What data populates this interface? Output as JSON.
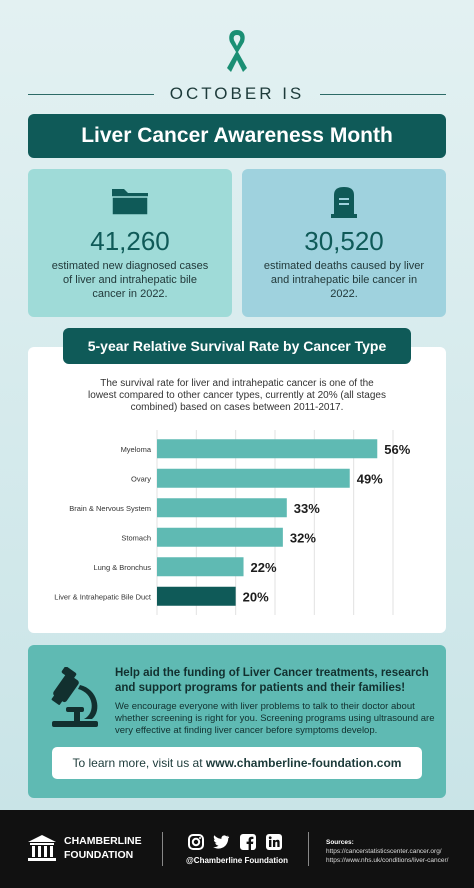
{
  "header": {
    "eyebrow": "OCTOBER IS",
    "title": "Liver Cancer Awareness Month"
  },
  "stats": [
    {
      "value": "41,260",
      "description": "estimated new diagnosed cases of liver and intrahepatic bile cancer in 2022.",
      "icon": "folder-icon"
    },
    {
      "value": "30,520",
      "description": "estimated deaths caused by liver and intrahepatic bile cancer in 2022.",
      "icon": "gravestone-icon"
    }
  ],
  "survival": {
    "title": "5-year Relative Survival Rate by Cancer Type",
    "intro": "The survival rate for liver and intrahepatic cancer is one of the lowest compared to other cancer types, currently at 20% (all stages combined) based on cases between 2011-2017."
  },
  "chart_data": {
    "type": "bar",
    "orientation": "horizontal",
    "categories": [
      "Myeloma",
      "Ovary",
      "Brain & Nervous System",
      "Stomach",
      "Lung & Bronchus",
      "Liver & Intrahepatic Bile Duct"
    ],
    "values": [
      56,
      49,
      33,
      32,
      22,
      20
    ],
    "value_labels": [
      "56%",
      "49%",
      "33%",
      "32%",
      "22%",
      "20%"
    ],
    "xlim": [
      0,
      60
    ],
    "grid": true,
    "colors": {
      "default": "#5fbab3",
      "highlight": "#0f5a58"
    },
    "highlight_index": 5
  },
  "help": {
    "heading": "Help aid the funding of Liver Cancer treatments, research and support programs for patients and their families!",
    "body": "We encourage everyone with liver problems to talk to their doctor about whether screening is right for you. Screening programs using ultrasound are very effective at finding liver cancer before symptoms develop.",
    "cta_prefix": "To learn more, visit us at",
    "cta_link": "www.chamberline-foundation.com",
    "icon": "microscope-icon"
  },
  "footer": {
    "org_line1": "CHAMBERLINE",
    "org_line2": "FOUNDATION",
    "handle": "@Chamberline Foundation",
    "sources_label": "Sources:",
    "sources": [
      "https://cancerstatisticscenter.cancer.org/",
      "https://www.nhs.uk/conditions/liver-cancer/"
    ],
    "social_icons": [
      "instagram-icon",
      "twitter-icon",
      "facebook-icon",
      "linkedin-icon"
    ]
  },
  "colors": {
    "brand_dark": "#0f5a58",
    "brand_mid": "#5fbab3",
    "brand_light": "#9fdbd8"
  }
}
